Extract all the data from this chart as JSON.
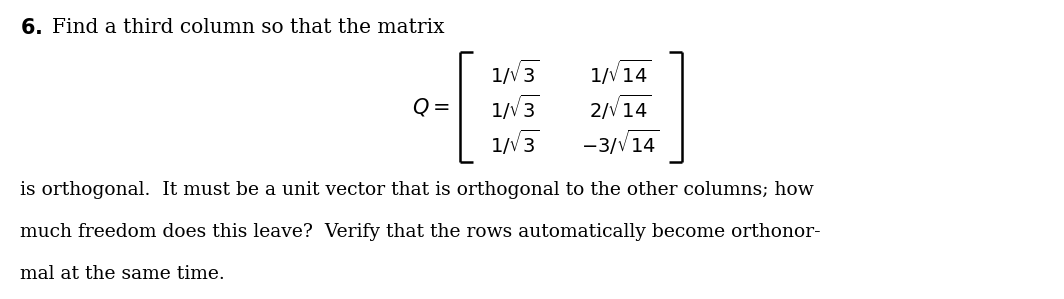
{
  "problem_number": "6.",
  "heading_text": "Find a third column so that the matrix",
  "body_text_line1": "is orthogonal.  It must be a unit vector that is orthogonal to the other columns; how",
  "body_text_line2": "much freedom does this leave?  Verify that the rows automatically become orthonor-",
  "body_text_line3": "mal at the same time.",
  "bg_color": "#ffffff",
  "text_color": "#000000",
  "fs_number": 15,
  "fs_heading": 14.5,
  "fs_body": 13.5,
  "fs_matrix": 14,
  "fig_width": 10.64,
  "fig_height": 2.99,
  "fig_dpi": 100
}
